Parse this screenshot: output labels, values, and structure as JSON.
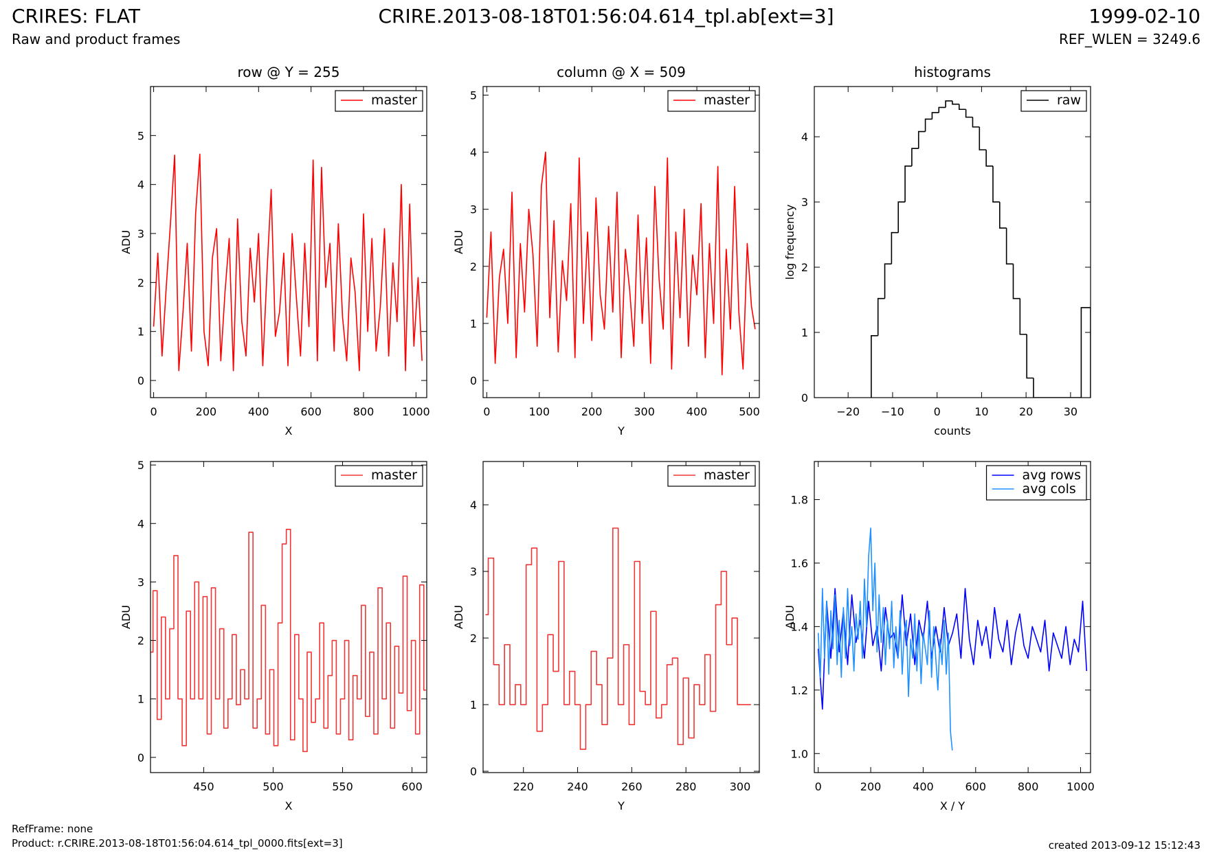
{
  "header": {
    "title": "CRIRES: FLAT",
    "subtitle": "Raw and product frames",
    "file": "CRIRE.2013-08-18T01:56:04.614_tpl.ab[ext=3]",
    "date": "1999-02-10",
    "ref_wlen": "REF_WLEN = 3249.6"
  },
  "footer": {
    "ref_frame": "RefFrame: none",
    "product": "Product: r.CRIRE.2013-08-18T01:56:04.614_tpl_0000.fits[ext=3]",
    "created": "created 2013-09-12 15:12:43"
  },
  "chart_data": [
    {
      "type": "line",
      "title": "row @ Y = 255",
      "x_label": "X",
      "y_label": "ADU",
      "legend": "upper right",
      "xlim": [
        -12,
        1041
      ],
      "ylim": [
        -0.35,
        6
      ],
      "xticks": [
        0,
        200,
        400,
        600,
        800,
        1000
      ],
      "yticks": [
        0,
        1,
        2,
        3,
        4,
        5
      ],
      "x": [
        0,
        16,
        32,
        48,
        64,
        80,
        96,
        112,
        128,
        144,
        160,
        176,
        192,
        208,
        224,
        240,
        256,
        272,
        288,
        304,
        320,
        336,
        352,
        368,
        384,
        400,
        416,
        432,
        448,
        464,
        480,
        496,
        512,
        528,
        544,
        560,
        576,
        592,
        608,
        624,
        640,
        656,
        672,
        688,
        704,
        720,
        736,
        752,
        768,
        784,
        800,
        816,
        832,
        848,
        864,
        880,
        896,
        912,
        928,
        944,
        960,
        976,
        992,
        1008,
        1023
      ],
      "series": [
        {
          "name": "master",
          "color": "#ff0000",
          "values": [
            1.1,
            2.6,
            0.5,
            1.9,
            3.2,
            4.6,
            0.2,
            1.4,
            2.8,
            0.6,
            3.4,
            4.62,
            1.0,
            0.3,
            2.5,
            3.1,
            0.4,
            1.8,
            2.9,
            0.2,
            3.3,
            1.2,
            0.5,
            2.7,
            1.6,
            3.0,
            0.3,
            2.2,
            3.9,
            0.9,
            1.4,
            2.6,
            0.3,
            3.0,
            1.7,
            0.5,
            2.8,
            1.1,
            4.5,
            0.4,
            4.35,
            1.9,
            2.8,
            0.6,
            3.2,
            1.3,
            0.4,
            2.5,
            1.8,
            0.2,
            3.4,
            1.0,
            2.9,
            0.6,
            1.5,
            3.1,
            0.5,
            2.4,
            1.2,
            4.0,
            0.2,
            3.6,
            0.7,
            2.1,
            0.4
          ]
        }
      ]
    },
    {
      "type": "line",
      "title": "column @ X = 509",
      "x_label": "Y",
      "y_label": "ADU",
      "legend": "upper right",
      "xlim": [
        -7,
        519
      ],
      "ylim": [
        -0.3,
        5.15
      ],
      "xticks": [
        0,
        100,
        200,
        300,
        400,
        500
      ],
      "yticks": [
        0,
        1,
        2,
        3,
        4,
        5
      ],
      "x": [
        0,
        8,
        16,
        24,
        32,
        40,
        48,
        56,
        64,
        72,
        80,
        88,
        96,
        104,
        112,
        120,
        128,
        136,
        144,
        152,
        160,
        168,
        176,
        184,
        192,
        200,
        208,
        216,
        224,
        232,
        240,
        248,
        256,
        264,
        272,
        280,
        288,
        296,
        304,
        312,
        320,
        328,
        336,
        344,
        352,
        360,
        368,
        376,
        384,
        392,
        400,
        408,
        416,
        424,
        432,
        440,
        448,
        456,
        464,
        472,
        480,
        488,
        496,
        504,
        511
      ],
      "series": [
        {
          "name": "master",
          "color": "#ff0000",
          "values": [
            1.1,
            2.6,
            0.3,
            1.8,
            2.3,
            1.0,
            3.3,
            0.4,
            2.4,
            1.2,
            3.0,
            2.2,
            0.6,
            3.4,
            4.0,
            1.1,
            2.8,
            0.5,
            2.1,
            1.4,
            3.1,
            0.4,
            3.9,
            1.0,
            2.6,
            0.7,
            3.2,
            1.5,
            0.9,
            2.7,
            1.2,
            3.3,
            0.4,
            2.3,
            1.6,
            0.6,
            2.9,
            1.0,
            2.5,
            0.3,
            3.4,
            1.8,
            0.9,
            3.9,
            0.2,
            2.6,
            1.1,
            3.0,
            0.6,
            2.2,
            1.5,
            3.1,
            0.4,
            2.4,
            1.0,
            3.75,
            0.1,
            2.3,
            0.9,
            3.4,
            1.2,
            0.2,
            2.4,
            1.3,
            0.9
          ]
        }
      ]
    },
    {
      "type": "histogram",
      "title": "histograms",
      "x_label": "counts",
      "y_label": "log frequency",
      "legend": "upper right",
      "xlim": [
        -27.6,
        34.5
      ],
      "ylim": [
        0,
        4.77
      ],
      "xticks": [
        {
          "value": -20,
          "label": "−20"
        },
        {
          "value": -10,
          "label": "−10"
        },
        0,
        10,
        20,
        30
      ],
      "yticks": [
        0,
        1,
        2,
        3,
        4
      ],
      "bins": [
        -14.8,
        -13.28,
        -11.76,
        -10.24,
        -8.72,
        -7.2,
        -5.68,
        -4.16,
        -2.64,
        -1.12,
        0.4,
        1.92,
        3.44,
        4.96,
        6.48,
        8.0,
        9.52,
        11.04,
        12.56,
        14.08,
        15.6,
        17.12,
        18.64,
        20.16,
        21.68,
        32.4,
        34.5
      ],
      "series": [
        {
          "name": "raw",
          "color": "#000000",
          "values": [
            0.95,
            1.52,
            2.05,
            2.53,
            3.0,
            3.55,
            3.82,
            4.08,
            4.27,
            4.37,
            4.45,
            4.55,
            4.5,
            4.42,
            4.3,
            4.15,
            3.8,
            3.55,
            3.0,
            2.6,
            2.05,
            1.52,
            0.97,
            0.3,
            0,
            1.38
          ]
        }
      ]
    },
    {
      "type": "line",
      "drawstyle": "steps-mid",
      "x_label": "X",
      "y_label": "ADU",
      "legend": "upper right",
      "xlim": [
        411.7,
        610.6
      ],
      "ylim": [
        -0.26,
        5.06
      ],
      "xticks": [
        450,
        500,
        550,
        600
      ],
      "yticks": [
        0,
        1,
        2,
        3,
        4,
        5
      ],
      "x": [
        412,
        415,
        418,
        421,
        424,
        427,
        430,
        433,
        436,
        439,
        442,
        445,
        448,
        451,
        454,
        457,
        460,
        463,
        466,
        469,
        472,
        475,
        478,
        481,
        484,
        487,
        490,
        493,
        496,
        499,
        502,
        505,
        508,
        511,
        514,
        517,
        520,
        523,
        526,
        529,
        532,
        535,
        538,
        541,
        544,
        547,
        550,
        553,
        556,
        559,
        562,
        565,
        568,
        571,
        574,
        577,
        580,
        583,
        586,
        589,
        592,
        595,
        598,
        601,
        604,
        607,
        610
      ],
      "series": [
        {
          "name": "master",
          "color": "#f03535",
          "values": [
            1.8,
            2.85,
            0.65,
            2.4,
            1.0,
            2.2,
            3.45,
            1.0,
            0.2,
            2.5,
            1.0,
            3.0,
            1.0,
            2.75,
            0.4,
            2.9,
            1.0,
            2.2,
            0.5,
            1.0,
            2.1,
            0.9,
            1.5,
            1.0,
            3.85,
            0.5,
            1.0,
            2.6,
            0.4,
            1.5,
            0.2,
            2.3,
            3.65,
            3.9,
            0.3,
            2.1,
            1.0,
            0.1,
            1.8,
            0.6,
            1.0,
            2.3,
            0.5,
            1.4,
            2.0,
            0.4,
            1.0,
            2.0,
            0.3,
            1.4,
            1.0,
            2.6,
            0.7,
            1.8,
            0.4,
            2.9,
            1.0,
            2.3,
            0.5,
            1.9,
            1.1,
            3.1,
            0.8,
            2.0,
            0.4,
            2.95,
            1.15
          ]
        }
      ]
    },
    {
      "type": "line",
      "drawstyle": "steps-mid",
      "x_label": "Y",
      "y_label": "ADU",
      "legend": "upper right",
      "xlim": [
        205.1,
        307.1
      ],
      "ylim": [
        -0.02,
        4.65
      ],
      "xticks": [
        220,
        240,
        260,
        280,
        300
      ],
      "yticks": [
        0,
        1,
        2,
        3,
        4
      ],
      "x": [
        206,
        208,
        210,
        212,
        214,
        216,
        218,
        220,
        222,
        224,
        226,
        228,
        230,
        232,
        234,
        236,
        238,
        240,
        242,
        244,
        246,
        248,
        250,
        252,
        254,
        256,
        258,
        260,
        262,
        264,
        266,
        268,
        270,
        272,
        274,
        276,
        278,
        280,
        282,
        284,
        286,
        288,
        290,
        292,
        294,
        296,
        298,
        300,
        302,
        304
      ],
      "series": [
        {
          "name": "master",
          "color": "#f03535",
          "values": [
            2.35,
            3.2,
            1.6,
            1.0,
            1.9,
            1.0,
            1.3,
            1.0,
            3.1,
            3.35,
            0.6,
            1.0,
            2.05,
            1.5,
            3.15,
            1.0,
            1.5,
            1.0,
            0.33,
            1.0,
            1.8,
            1.3,
            0.7,
            1.7,
            3.65,
            1.0,
            1.9,
            0.7,
            3.15,
            1.2,
            1.0,
            2.4,
            0.8,
            1.0,
            1.6,
            1.7,
            0.4,
            1.4,
            0.5,
            1.3,
            1.0,
            1.75,
            0.9,
            2.5,
            3.0,
            1.9,
            2.3,
            1.0,
            1.0,
            1.0
          ]
        }
      ]
    },
    {
      "type": "line",
      "x_label": "X / Y",
      "y_label": "ADU",
      "legend": "upper right",
      "xlim": [
        -15,
        1038
      ],
      "ylim": [
        0.94,
        1.92
      ],
      "xticks": [
        0,
        200,
        400,
        600,
        800,
        1000
      ],
      "yticks": [
        {
          "value": 1,
          "label": "1.0"
        },
        1.2,
        1.4,
        1.6,
        1.8
      ],
      "series": [
        {
          "name": "avg rows",
          "color": "#0000ff",
          "x": [
            0,
            16,
            32,
            48,
            64,
            80,
            96,
            112,
            128,
            144,
            160,
            176,
            192,
            208,
            224,
            240,
            256,
            272,
            288,
            304,
            320,
            336,
            352,
            368,
            384,
            400,
            416,
            432,
            448,
            464,
            480,
            496,
            512,
            528,
            544,
            560,
            576,
            592,
            608,
            624,
            640,
            656,
            672,
            688,
            704,
            720,
            736,
            752,
            768,
            784,
            800,
            816,
            832,
            848,
            864,
            880,
            896,
            912,
            928,
            944,
            960,
            976,
            992,
            1008,
            1023
          ],
          "values": [
            1.33,
            1.14,
            1.48,
            1.3,
            1.52,
            1.32,
            1.45,
            1.28,
            1.5,
            1.35,
            1.42,
            1.3,
            1.48,
            1.34,
            1.4,
            1.26,
            1.46,
            1.36,
            1.38,
            1.3,
            1.5,
            1.34,
            1.44,
            1.28,
            1.42,
            1.36,
            1.48,
            1.3,
            1.4,
            1.32,
            1.46,
            1.34,
            1.38,
            1.44,
            1.3,
            1.52,
            1.36,
            1.28,
            1.42,
            1.34,
            1.4,
            1.3,
            1.46,
            1.36,
            1.32,
            1.42,
            1.28,
            1.38,
            1.44,
            1.34,
            1.3,
            1.4,
            1.36,
            1.32,
            1.42,
            1.26,
            1.38,
            1.34,
            1.3,
            1.4,
            1.28,
            1.36,
            1.32,
            1.48,
            1.26
          ]
        },
        {
          "name": "avg cols",
          "color": "#1e90ff",
          "x": [
            0,
            8,
            16,
            24,
            32,
            40,
            48,
            56,
            64,
            72,
            80,
            88,
            96,
            104,
            112,
            120,
            128,
            136,
            144,
            152,
            160,
            168,
            176,
            184,
            192,
            200,
            208,
            216,
            224,
            232,
            240,
            248,
            256,
            264,
            272,
            280,
            288,
            296,
            304,
            312,
            320,
            328,
            336,
            344,
            352,
            360,
            368,
            376,
            384,
            392,
            400,
            408,
            416,
            424,
            432,
            440,
            448,
            456,
            464,
            472,
            480,
            488,
            496,
            504,
            511
          ],
          "values": [
            1.38,
            1.24,
            1.52,
            1.3,
            1.48,
            1.25,
            1.45,
            1.33,
            1.5,
            1.28,
            1.42,
            1.24,
            1.46,
            1.3,
            1.52,
            1.34,
            1.4,
            1.26,
            1.44,
            1.36,
            1.48,
            1.3,
            1.55,
            1.4,
            1.62,
            1.71,
            1.45,
            1.6,
            1.32,
            1.5,
            1.35,
            1.46,
            1.28,
            1.42,
            1.33,
            1.48,
            1.27,
            1.4,
            1.3,
            1.45,
            1.25,
            1.38,
            1.42,
            1.18,
            1.36,
            1.3,
            1.44,
            1.26,
            1.4,
            1.22,
            1.38,
            1.33,
            1.28,
            1.45,
            1.24,
            1.4,
            1.3,
            1.2,
            1.36,
            1.28,
            1.42,
            1.25,
            1.38,
            1.07,
            1.01
          ]
        }
      ]
    }
  ]
}
